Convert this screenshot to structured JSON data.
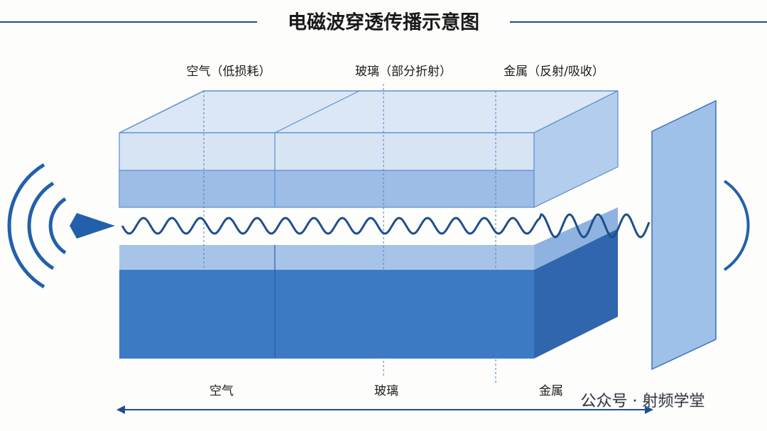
{
  "header": {
    "title": "电磁波穿透传播示意图"
  },
  "top_labels": [
    "空气（低损耗）",
    "玻璃（部分折射）",
    "金属（反射/吸收）"
  ],
  "bottom_labels": [
    "空气",
    "玻璃",
    "金属"
  ],
  "watermark": "公众号 · 射频学堂"
}
